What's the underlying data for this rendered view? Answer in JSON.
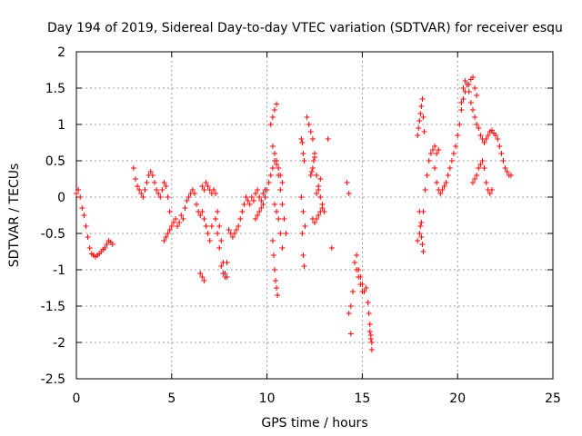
{
  "chart_data": {
    "type": "scatter",
    "title": "Day 194 of 2019, Sidereal Day-to-day VTEC variation (SDTVAR) for receiver esqu",
    "xlabel": "GPS time / hours",
    "ylabel": "SDTVAR / TECUs",
    "xlim": [
      0,
      25
    ],
    "ylim": [
      -2.5,
      2
    ],
    "xticks": [
      0,
      5,
      10,
      15,
      20,
      25
    ],
    "xtick_labels": [
      "0",
      "5",
      "10",
      "15",
      "20",
      "25"
    ],
    "yticks": [
      2,
      1.5,
      1,
      0.5,
      0,
      -0.5,
      -1,
      -1.5,
      -2,
      -2.5
    ],
    "ytick_labels": [
      "2",
      "1.5",
      "1",
      "0.5",
      "0",
      "-0.5",
      "-1",
      "-1.5",
      "-2",
      "-2.5"
    ],
    "grid": true,
    "marker": "+",
    "color": "#ff0000",
    "series": [
      {
        "name": "SDTVAR",
        "x": [
          0.0,
          0.1,
          0.2,
          0.3,
          0.4,
          0.5,
          0.6,
          0.7,
          0.8,
          0.9,
          1.0,
          1.1,
          1.2,
          1.3,
          1.4,
          1.5,
          1.6,
          1.7,
          1.8,
          1.9,
          3.0,
          3.1,
          3.2,
          3.3,
          3.4,
          3.5,
          3.6,
          3.7,
          3.8,
          3.9,
          4.0,
          4.1,
          4.2,
          4.3,
          4.4,
          4.5,
          4.6,
          4.7,
          4.8,
          4.9,
          4.6,
          4.7,
          4.8,
          4.9,
          5.0,
          5.1,
          5.2,
          5.3,
          5.4,
          5.5,
          5.6,
          5.7,
          5.8,
          5.9,
          6.0,
          6.1,
          6.2,
          6.3,
          6.4,
          6.5,
          6.6,
          6.7,
          6.8,
          6.9,
          7.0,
          7.1,
          7.2,
          7.3,
          7.4,
          7.5,
          7.6,
          7.7,
          7.8,
          7.9,
          6.6,
          6.7,
          6.8,
          6.9,
          7.0,
          7.1,
          6.5,
          6.6,
          6.7,
          7.3,
          7.4,
          7.5,
          7.6,
          7.7,
          7.8,
          7.9,
          8.0,
          8.1,
          8.2,
          8.3,
          8.4,
          8.5,
          8.6,
          8.7,
          8.8,
          8.9,
          9.0,
          9.1,
          9.2,
          9.3,
          9.4,
          9.5,
          9.6,
          9.7,
          9.8,
          9.9,
          9.4,
          9.5,
          9.6,
          9.7,
          9.8,
          9.9,
          10.0,
          10.1,
          10.2,
          10.3,
          10.4,
          10.5,
          10.6,
          10.7,
          10.8,
          10.9,
          11.0,
          10.3,
          10.4,
          10.5,
          10.6,
          10.7,
          10.8,
          10.4,
          10.5,
          10.6,
          10.7,
          10.8,
          10.2,
          10.3,
          10.4,
          10.5,
          10.3,
          10.35,
          10.4,
          10.45,
          10.5,
          10.55,
          11.8,
          11.85,
          11.9,
          11.95,
          11.8,
          11.85,
          11.9,
          11.95,
          11.9,
          12.0,
          12.1,
          12.2,
          12.3,
          12.4,
          12.5,
          12.6,
          12.7,
          12.8,
          12.9,
          13.0,
          12.3,
          12.35,
          12.4,
          12.45,
          12.5,
          12.4,
          12.5,
          12.6,
          12.7,
          12.8,
          12.9,
          12.6,
          12.7,
          12.8,
          13.2,
          13.4,
          14.2,
          14.3,
          14.3,
          14.4,
          14.4,
          14.5,
          14.6,
          14.7,
          14.8,
          14.9,
          15.0,
          15.1,
          15.2,
          14.7,
          14.8,
          14.9,
          15.0,
          15.3,
          15.35,
          15.4,
          15.45,
          15.5,
          15.4,
          15.45,
          15.5,
          17.9,
          18.0,
          18.1,
          18.2,
          18.3,
          18.4,
          18.5,
          18.6,
          18.7,
          18.8,
          18.9,
          19.0,
          17.9,
          17.95,
          18.0,
          18.05,
          18.1,
          18.15,
          18.2,
          18.25,
          18.0,
          18.05,
          18.1,
          18.15,
          18.2,
          18.8,
          18.9,
          19.0,
          19.1,
          19.2,
          19.3,
          19.4,
          19.5,
          19.6,
          19.7,
          19.8,
          19.9,
          20.0,
          20.1,
          20.2,
          20.3,
          20.4,
          20.5,
          20.6,
          20.7,
          20.8,
          20.9,
          21.0,
          21.1,
          21.2,
          21.3,
          21.4,
          21.5,
          21.6,
          21.7,
          21.8,
          21.9,
          22.0,
          22.1,
          22.2,
          22.3,
          22.4,
          22.5,
          22.6,
          22.7,
          22.8,
          20.8,
          20.9,
          21.0,
          21.1,
          21.2,
          21.3,
          21.4,
          21.5,
          21.6,
          21.7,
          21.8,
          20.6,
          20.7,
          20.8,
          20.9,
          21.0,
          20.2,
          20.3,
          20.4,
          20.5
        ],
        "y": [
          0.05,
          0.1,
          0.0,
          -0.15,
          -0.25,
          -0.4,
          -0.55,
          -0.7,
          -0.78,
          -0.8,
          -0.82,
          -0.8,
          -0.78,
          -0.75,
          -0.72,
          -0.7,
          -0.65,
          -0.6,
          -0.62,
          -0.65,
          0.4,
          0.25,
          0.15,
          0.1,
          0.05,
          0.0,
          0.1,
          0.2,
          0.3,
          0.35,
          0.3,
          0.2,
          0.1,
          0.05,
          0.0,
          0.1,
          0.2,
          0.15,
          0.0,
          -0.2,
          -0.6,
          -0.55,
          -0.5,
          -0.45,
          -0.4,
          -0.35,
          -0.3,
          -0.4,
          -0.35,
          -0.25,
          -0.3,
          -0.15,
          -0.05,
          0.0,
          0.05,
          0.1,
          0.05,
          -0.1,
          -0.2,
          -0.25,
          0.15,
          0.1,
          0.2,
          0.15,
          0.1,
          0.05,
          0.1,
          0.05,
          -0.2,
          -0.4,
          -0.6,
          -0.9,
          -1.05,
          -1.1,
          -0.2,
          -0.3,
          -0.4,
          -0.5,
          -0.6,
          -0.4,
          -1.05,
          -1.1,
          -1.15,
          -0.3,
          -0.5,
          -0.7,
          -0.95,
          -1.05,
          -1.1,
          -0.9,
          -0.45,
          -0.5,
          -0.55,
          -0.5,
          -0.45,
          -0.4,
          -0.3,
          -0.2,
          -0.1,
          0.0,
          -0.05,
          -0.1,
          0.0,
          -0.05,
          0.05,
          0.1,
          0.0,
          -0.05,
          0.05,
          0.1,
          -0.3,
          -0.25,
          -0.2,
          -0.15,
          -0.1,
          0.0,
          0.1,
          0.2,
          0.3,
          0.4,
          0.5,
          0.45,
          0.3,
          0.1,
          -0.1,
          -0.3,
          -0.5,
          0.7,
          0.6,
          0.5,
          0.4,
          0.3,
          0.2,
          -0.1,
          -0.2,
          -0.3,
          -0.5,
          -0.7,
          1.0,
          1.1,
          1.2,
          1.28,
          -0.6,
          -0.8,
          -1.0,
          -1.15,
          -1.25,
          -1.35,
          0.8,
          0.75,
          0.6,
          0.5,
          0.0,
          -0.5,
          -0.8,
          -0.95,
          -0.2,
          -0.4,
          1.1,
          1.0,
          0.9,
          0.8,
          0.6,
          0.3,
          0.1,
          0.0,
          -0.1,
          -0.2,
          0.3,
          0.35,
          0.4,
          0.5,
          0.55,
          -0.3,
          -0.35,
          -0.3,
          -0.25,
          -0.2,
          -0.15,
          0.05,
          0.15,
          0.25,
          0.8,
          -0.7,
          0.2,
          0.05,
          -1.6,
          -1.5,
          -1.88,
          -1.3,
          -0.9,
          -0.8,
          -1.0,
          -1.1,
          -1.2,
          -1.3,
          -1.25,
          -1.0,
          -1.1,
          -1.2,
          -1.3,
          -1.45,
          -1.6,
          -1.85,
          -1.95,
          -2.1,
          -1.75,
          -1.9,
          -2.0,
          -0.6,
          -0.5,
          -0.35,
          -0.2,
          0.1,
          0.3,
          0.5,
          0.6,
          0.65,
          0.7,
          0.6,
          0.65,
          0.85,
          0.95,
          1.05,
          1.15,
          1.25,
          1.35,
          1.1,
          0.9,
          -0.2,
          -0.4,
          -0.55,
          -0.65,
          -0.75,
          0.4,
          0.2,
          0.1,
          0.05,
          0.1,
          0.15,
          0.2,
          0.3,
          0.4,
          0.5,
          0.6,
          0.7,
          0.85,
          1.0,
          1.3,
          1.5,
          1.6,
          1.55,
          1.45,
          1.3,
          1.2,
          1.1,
          1.0,
          0.95,
          0.85,
          0.8,
          0.75,
          0.8,
          0.85,
          0.9,
          0.92,
          0.88,
          0.85,
          0.8,
          0.7,
          0.6,
          0.5,
          0.4,
          0.35,
          0.3,
          0.3,
          0.2,
          0.25,
          0.3,
          0.4,
          0.45,
          0.5,
          0.4,
          0.2,
          0.1,
          0.05,
          0.1,
          1.55,
          1.62,
          1.65,
          1.5,
          1.4,
          1.2,
          1.35,
          1.45,
          1.55
        ]
      }
    ]
  }
}
